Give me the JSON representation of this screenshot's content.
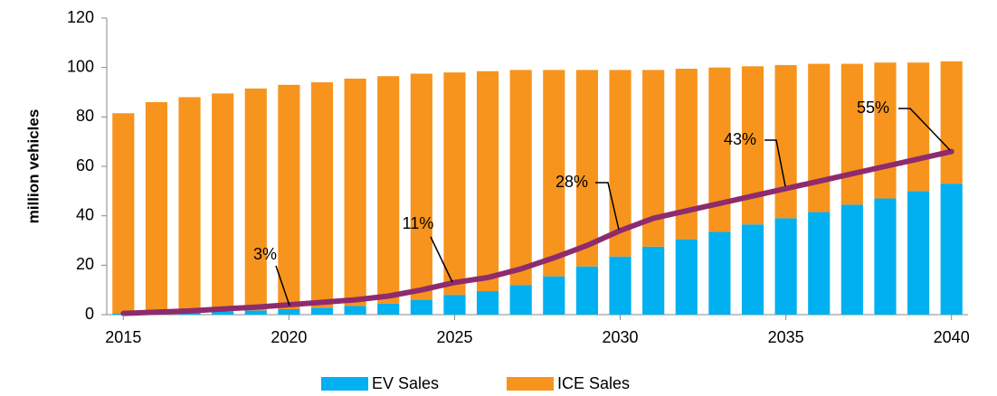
{
  "chart_data": {
    "type": "bar",
    "stacked": true,
    "y_label": "million vehicles",
    "categories": [
      2015,
      null,
      null,
      null,
      null,
      2020,
      null,
      null,
      null,
      null,
      2025,
      null,
      null,
      null,
      null,
      2030,
      null,
      null,
      null,
      null,
      2035,
      null,
      null,
      null,
      null,
      2040
    ],
    "series": [
      {
        "name": "EV Sales",
        "color": "#00b0f0",
        "values": [
          0.5,
          0.7,
          1,
          1.3,
          1.7,
          2.2,
          2.8,
          3.5,
          4.5,
          6,
          8,
          9.5,
          12,
          15.5,
          19.5,
          23.5,
          27.5,
          30.5,
          33.5,
          36.5,
          39,
          41.5,
          44.5,
          47,
          50,
          53
        ]
      },
      {
        "name": "ICE Sales",
        "color": "#f7941d",
        "values": [
          81,
          85.3,
          87,
          88.2,
          89.8,
          90.8,
          91.2,
          92,
          92,
          91.5,
          90,
          89,
          87,
          83.5,
          79.5,
          75.5,
          71.5,
          69,
          66.5,
          64,
          62,
          60,
          57,
          55,
          52,
          49.5
        ]
      },
      {
        "type": "line",
        "color": "#8e2b6e",
        "values": [
          0.5,
          1,
          1.5,
          2.3,
          3,
          4,
          5,
          6,
          7.5,
          10,
          13,
          15,
          18.5,
          23,
          28,
          34,
          39,
          42,
          45,
          48,
          51,
          54,
          57,
          60,
          63,
          66
        ]
      }
    ],
    "annotations": [
      "3%",
      "11%",
      "28%",
      "43%",
      "55%"
    ],
    "ylim": [
      0,
      120
    ],
    "yticks": [
      0,
      20,
      40,
      60,
      80,
      100,
      120
    ],
    "legend": "bottom"
  }
}
